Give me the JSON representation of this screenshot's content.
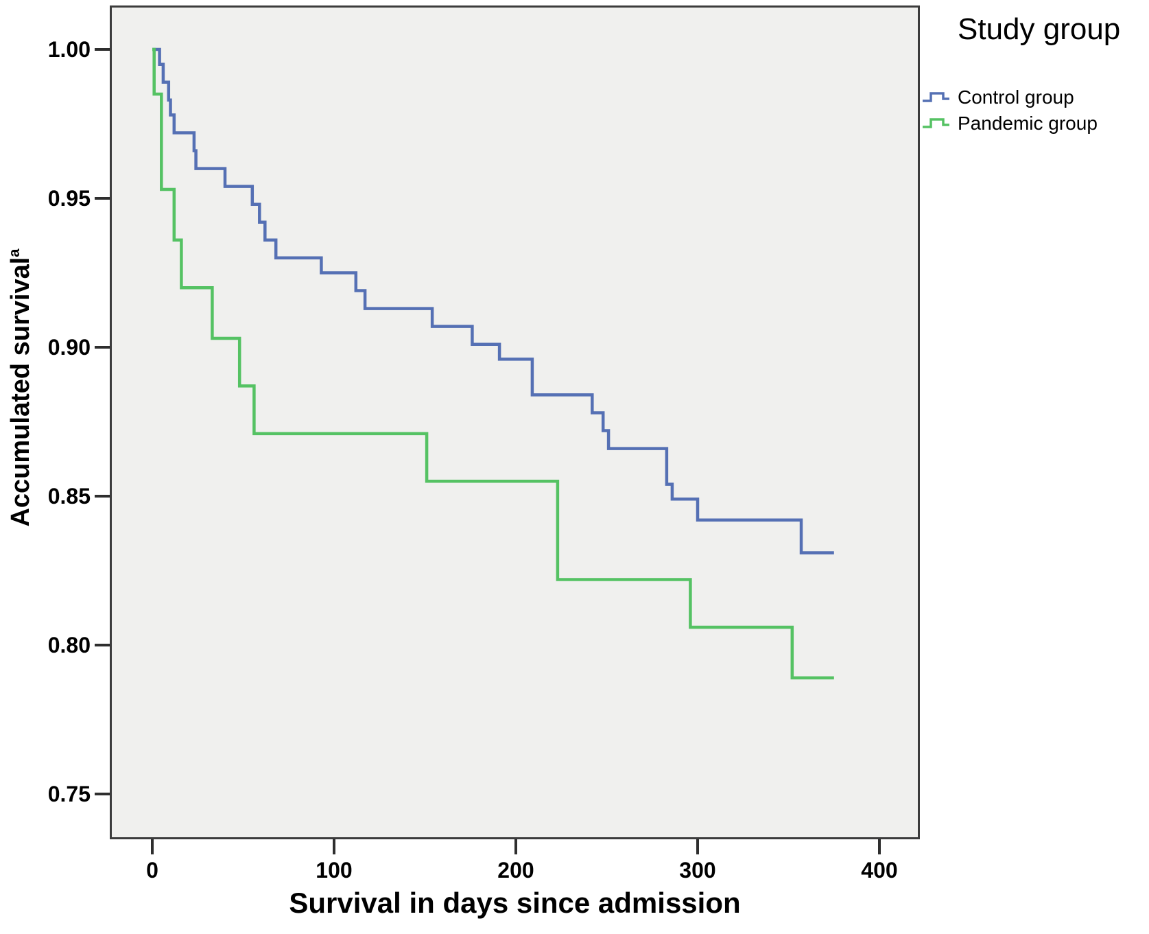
{
  "figure": {
    "y_axis_title": "Accumulated survival",
    "y_axis_superscript": "a",
    "x_axis_title": "Survival in days since admission"
  },
  "legend": {
    "title": "Study group",
    "items": [
      {
        "label": "Control group",
        "color": "#5570b4"
      },
      {
        "label": "Pandemic group",
        "color": "#55c263"
      }
    ]
  },
  "colors": {
    "plot_background": "#f0f0ee",
    "plot_border": "#3c3c3c",
    "control_line": "#5570b4",
    "pandemic_line": "#55c263",
    "text": "#000000"
  },
  "chart_data": {
    "type": "line",
    "subtype": "kaplan-meier-step",
    "title": "",
    "xlabel": "Survival in days since admission",
    "ylabel": "Accumulated survival",
    "legend_title": "Study group",
    "legend_position": "outside-top-right",
    "grid": false,
    "xlim": [
      -25,
      425
    ],
    "ylim": [
      0.73,
      1.01
    ],
    "x_ticks": [
      0,
      100,
      200,
      300,
      400
    ],
    "y_ticks": [
      1.0,
      0.95,
      0.9,
      0.85,
      0.8,
      0.75
    ],
    "x_tick_format": "integer",
    "y_tick_format": "2-decimals",
    "series": [
      {
        "name": "Control group",
        "color": "#5570b4",
        "end_day": 375,
        "points": [
          [
            0,
            1.0
          ],
          [
            4,
            0.995
          ],
          [
            6,
            0.989
          ],
          [
            9,
            0.983
          ],
          [
            10,
            0.978
          ],
          [
            12,
            0.972
          ],
          [
            23,
            0.966
          ],
          [
            24,
            0.96
          ],
          [
            40,
            0.954
          ],
          [
            55,
            0.948
          ],
          [
            59,
            0.942
          ],
          [
            62,
            0.936
          ],
          [
            68,
            0.93
          ],
          [
            93,
            0.925
          ],
          [
            112,
            0.919
          ],
          [
            117,
            0.913
          ],
          [
            154,
            0.907
          ],
          [
            176,
            0.901
          ],
          [
            191,
            0.896
          ],
          [
            209,
            0.884
          ],
          [
            242,
            0.878
          ],
          [
            248,
            0.872
          ],
          [
            251,
            0.866
          ],
          [
            283,
            0.854
          ],
          [
            286,
            0.849
          ],
          [
            300,
            0.842
          ],
          [
            357,
            0.831
          ]
        ]
      },
      {
        "name": "Pandemic group",
        "color": "#55c263",
        "end_day": 375,
        "points": [
          [
            0,
            1.0
          ],
          [
            1,
            0.985
          ],
          [
            5,
            0.953
          ],
          [
            12,
            0.936
          ],
          [
            16,
            0.92
          ],
          [
            33,
            0.903
          ],
          [
            48,
            0.887
          ],
          [
            56,
            0.871
          ],
          [
            151,
            0.855
          ],
          [
            223,
            0.822
          ],
          [
            296,
            0.806
          ],
          [
            352,
            0.789
          ]
        ]
      }
    ]
  }
}
